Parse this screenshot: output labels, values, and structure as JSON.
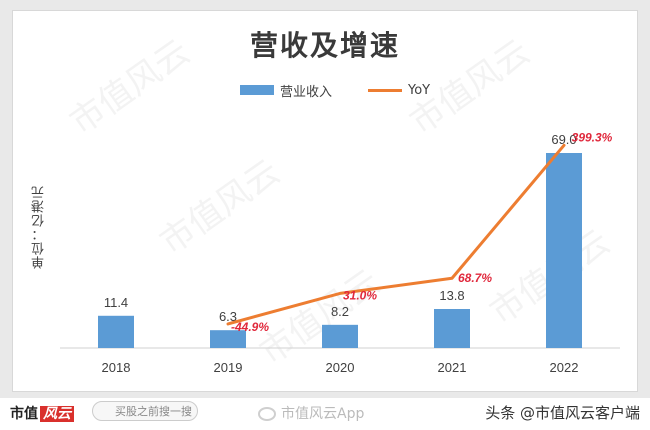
{
  "chart_data": {
    "type": "bar",
    "title": "营收及增速",
    "ylabel": "单位：亿港元",
    "categories": [
      "2018",
      "2019",
      "2020",
      "2021",
      "2022"
    ],
    "series": [
      {
        "name": "营业收入",
        "type": "bar",
        "values": [
          11.4,
          6.3,
          8.2,
          13.8,
          69.0
        ],
        "labels": [
          "11.4",
          "6.3",
          "8.2",
          "13.8",
          "69.0"
        ],
        "color": "#5b9bd5"
      },
      {
        "name": "YoY",
        "type": "line",
        "values": [
          null,
          -44.9,
          31.0,
          68.7,
          399.3
        ],
        "labels": [
          "",
          "-44.9%",
          "31.0%",
          "68.7%",
          "399.3%"
        ],
        "color": "#ed7d31",
        "label_color": "#e0283c"
      }
    ]
  },
  "watermark": "市值风云",
  "footer": {
    "brand": "市值",
    "brand_red": "风云",
    "search_placeholder": "买股之前搜一搜",
    "weibo": "市值风云App",
    "toutiao": "头条 @市值风云客户端"
  }
}
